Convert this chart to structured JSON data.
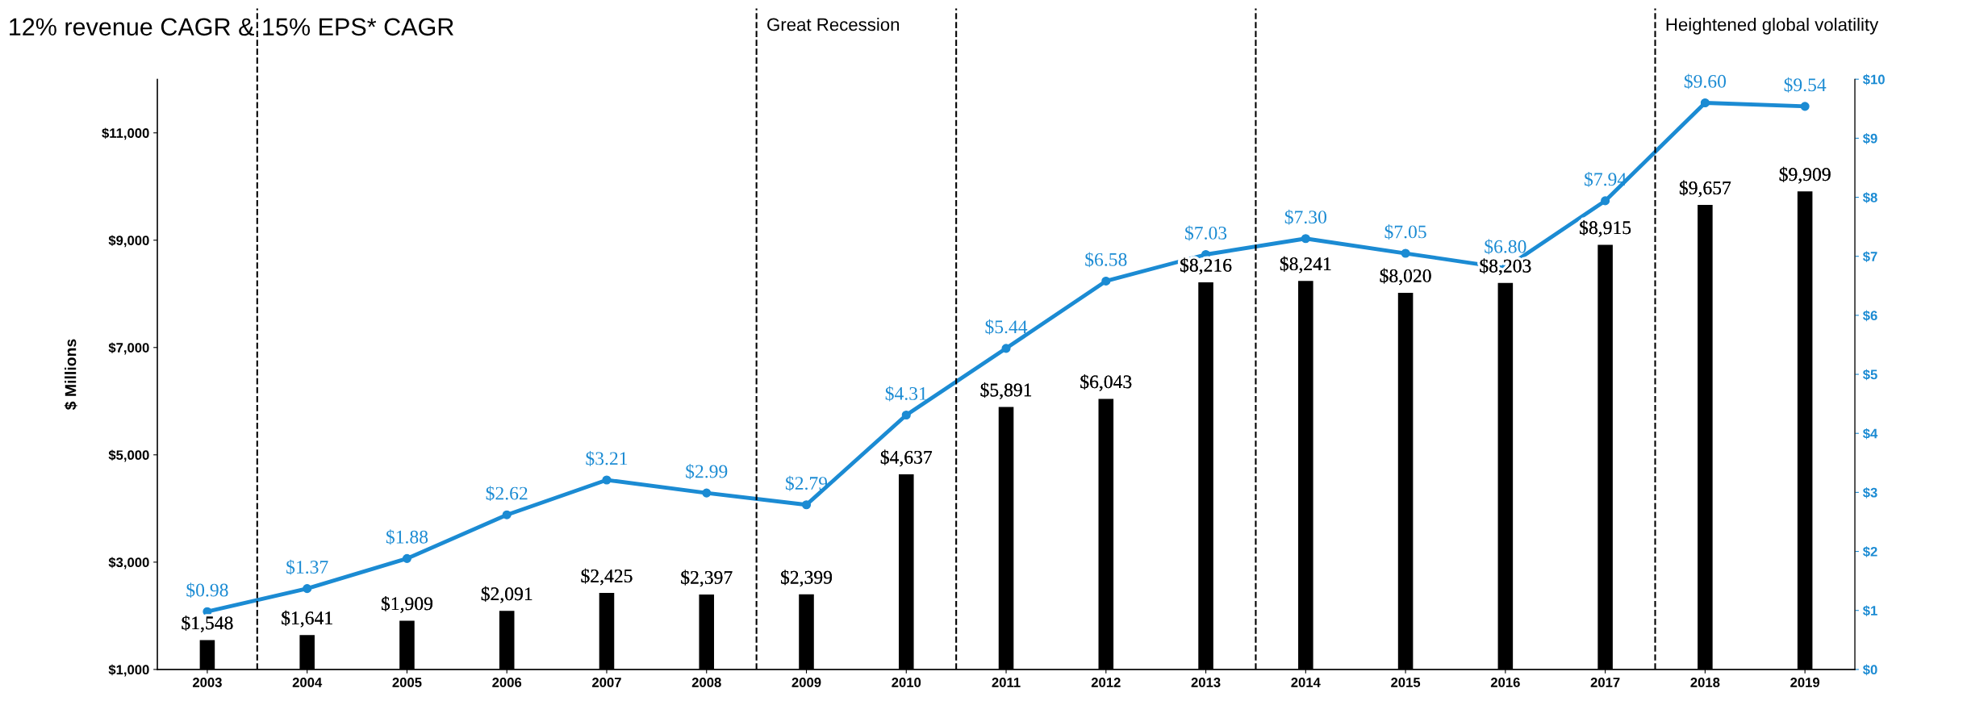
{
  "chart_data": {
    "type": "bar",
    "title": "12% revenue CAGR & 15% EPS* CAGR",
    "ylabel": "$ Millions",
    "x": [
      2003,
      2004,
      2005,
      2006,
      2007,
      2008,
      2009,
      2010,
      2011,
      2012,
      2013,
      2014,
      2015,
      2016,
      2017,
      2018,
      2019
    ],
    "series": [
      {
        "color": "#000000",
        "values": [
          1548,
          1641,
          1909,
          2091,
          2425,
          2397,
          2399,
          4637,
          5891,
          6043,
          8216,
          8241,
          8020,
          8203,
          8915,
          9657,
          9909
        ],
        "value_labels": [
          "$1,548",
          "$1,641",
          "$1,909",
          "$2,091",
          "$2,425",
          "$2,397",
          "$2,399",
          "$4,637",
          "$5,891",
          "$6,043",
          "$8,216",
          "$8,241",
          "$8,020",
          "$8,203",
          "$8,915",
          "$9,657",
          "$9,909"
        ]
      },
      {
        "type": "line",
        "axis": "y2",
        "color": "#1b8bd3",
        "marker": "circle",
        "line_style": "solid",
        "values": [
          0.98,
          1.37,
          1.88,
          2.62,
          3.21,
          2.99,
          2.79,
          4.31,
          5.44,
          6.58,
          7.03,
          7.3,
          7.05,
          6.8,
          7.94,
          9.6,
          9.54
        ],
        "value_labels": [
          "$0.98",
          "$1.37",
          "$1.88",
          "$2.62",
          "$3.21",
          "$2.99",
          "$2.79",
          "$4.31",
          "$5.44",
          "$6.58",
          "$7.03",
          "$7.30",
          "$7.05",
          "$6.80",
          "$7.94",
          "$9.60",
          "$9.54"
        ]
      }
    ],
    "xlim": [
      2002.5,
      2019.5
    ],
    "xticks": [
      2003,
      2004,
      2005,
      2006,
      2007,
      2008,
      2009,
      2010,
      2011,
      2012,
      2013,
      2014,
      2015,
      2016,
      2017,
      2018,
      2019
    ],
    "ylim": [
      1000,
      12000
    ],
    "yticks": [
      {
        "value": 1000,
        "label": "$1,000"
      },
      {
        "value": 3000,
        "label": "$3,000"
      },
      {
        "value": 5000,
        "label": "$5,000"
      },
      {
        "value": 7000,
        "label": "$7,000"
      },
      {
        "value": 9000,
        "label": "$9,000"
      },
      {
        "value": 11000,
        "label": "$11,000"
      }
    ],
    "y2lim": [
      0,
      10
    ],
    "y2ticks": [
      {
        "value": 0,
        "label": "$0"
      },
      {
        "value": 1,
        "label": "$1"
      },
      {
        "value": 2,
        "label": "$2"
      },
      {
        "value": 3,
        "label": "$3"
      },
      {
        "value": 4,
        "label": "$4"
      },
      {
        "value": 5,
        "label": "$5"
      },
      {
        "value": 6,
        "label": "$6"
      },
      {
        "value": 7,
        "label": "$7"
      },
      {
        "value": 8,
        "label": "$8"
      },
      {
        "value": 9,
        "label": "$9"
      },
      {
        "value": 10,
        "label": "$10"
      }
    ],
    "ref_lines": [
      {
        "axis": "x",
        "value": 2003.5,
        "color": "#000000",
        "line_style": "dashed"
      },
      {
        "axis": "x",
        "value": 2008.5,
        "label": "Great Recession",
        "color": "#000000",
        "line_style": "dashed"
      },
      {
        "axis": "x",
        "value": 2010.5,
        "color": "#000000",
        "line_style": "dashed"
      },
      {
        "axis": "x",
        "value": 2013.5,
        "color": "#000000",
        "line_style": "dashed"
      },
      {
        "axis": "x",
        "value": 2017.5,
        "label": "Heightened global volatility",
        "color": "#000000",
        "line_style": "dashed"
      }
    ],
    "grid": false,
    "legend": false
  }
}
